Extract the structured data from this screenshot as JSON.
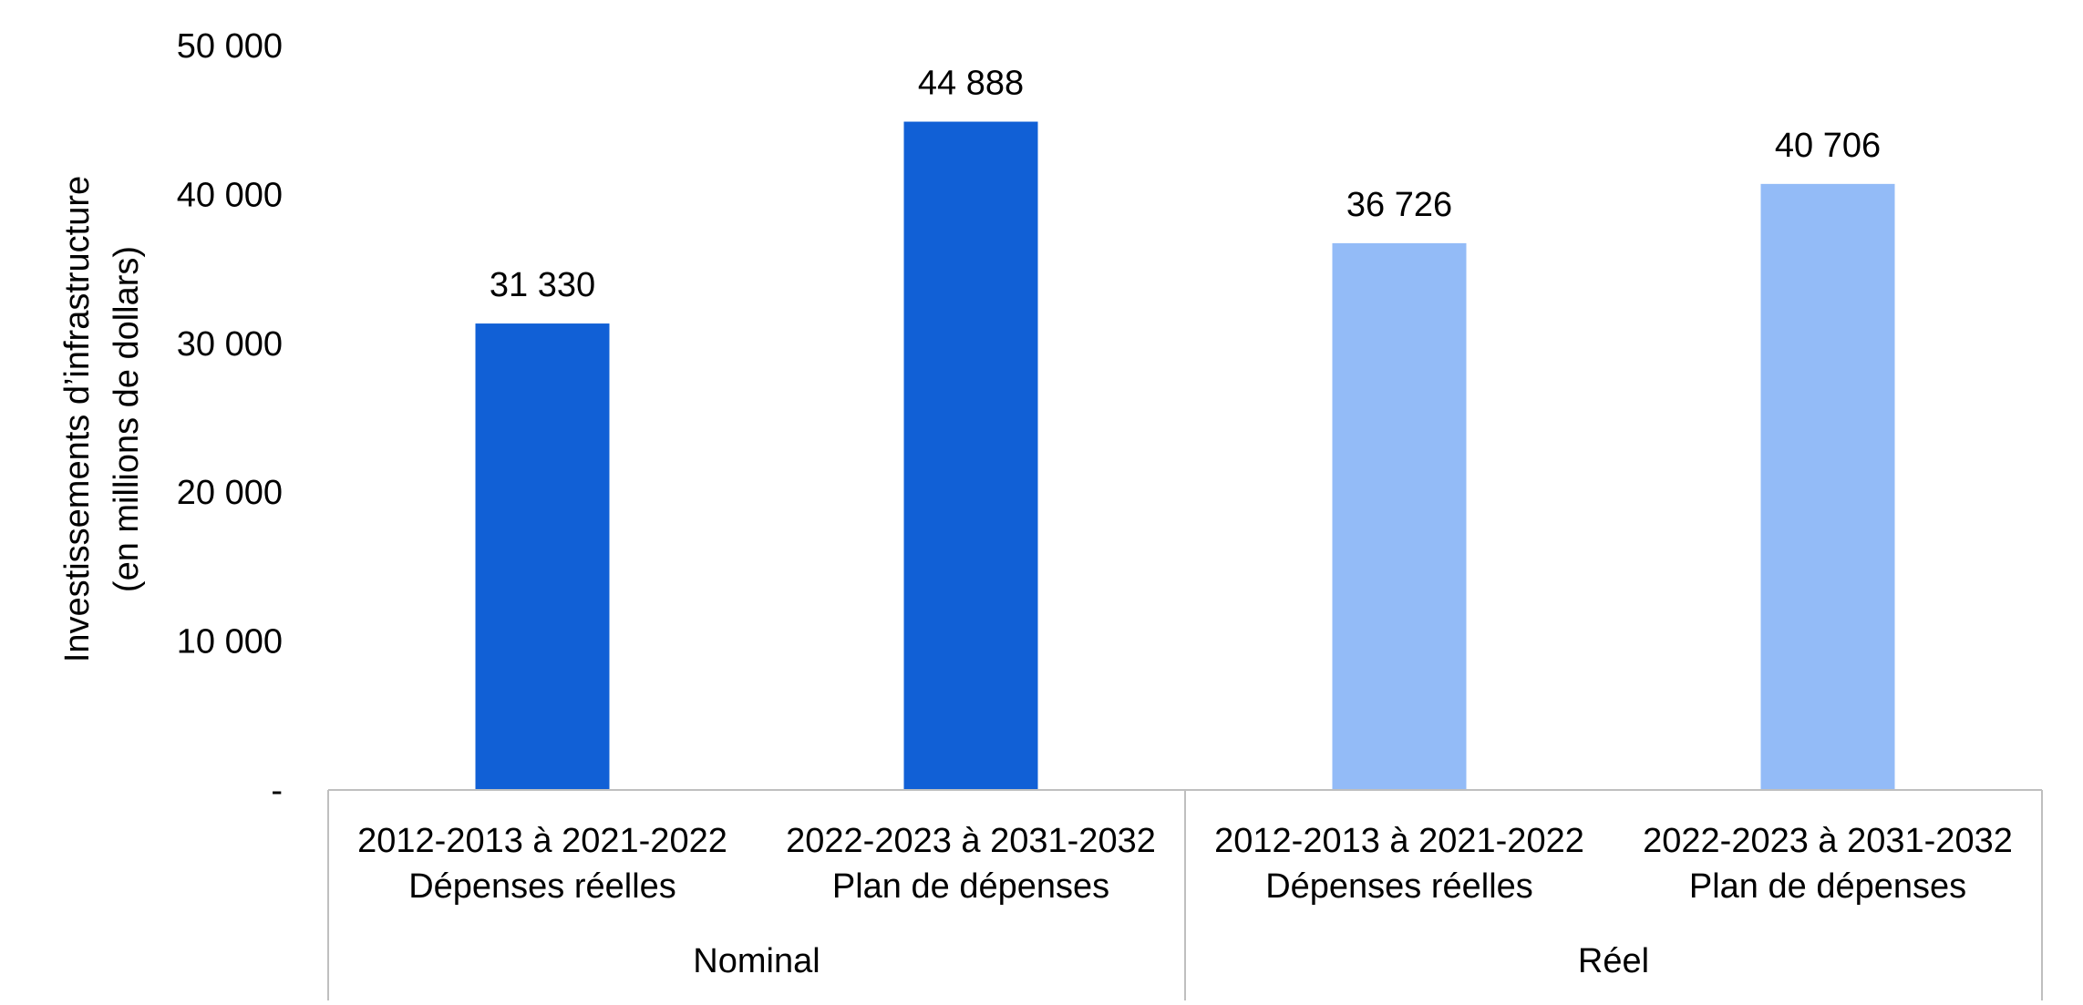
{
  "chart_data": {
    "type": "bar",
    "title": "",
    "ylabel": "Investissements d’infrastructure",
    "ylabel_line2": "(en millions de dollars)",
    "ylim": [
      0,
      50000
    ],
    "yticks": [
      {
        "value": 0,
        "label": "-"
      },
      {
        "value": 10000,
        "label": "10 000"
      },
      {
        "value": 20000,
        "label": "20 000"
      },
      {
        "value": 30000,
        "label": "30 000"
      },
      {
        "value": 40000,
        "label": "40 000"
      },
      {
        "value": 50000,
        "label": "50 000"
      }
    ],
    "grid": false,
    "legend": "none",
    "categories": [
      {
        "line1": "2012-2013 à 2021-2022",
        "line2": "Dépenses réelles",
        "group": "Nominal"
      },
      {
        "line1": "2022-2023 à 2031-2032",
        "line2": "Plan de dépenses",
        "group": "Nominal"
      },
      {
        "line1": "2012-2013 à 2021-2022",
        "line2": "Dépenses réelles",
        "group": "Réel"
      },
      {
        "line1": "2022-2023 à 2031-2032",
        "line2": "Plan de dépenses",
        "group": "Réel"
      }
    ],
    "values": [
      31330,
      44888,
      36726,
      40706
    ],
    "value_labels": [
      "31 330",
      "44 888",
      "36 726",
      "40 706"
    ],
    "groups": [
      "Nominal",
      "Réel"
    ],
    "colors": [
      "#1160d6",
      "#1160d6",
      "#93bbf7",
      "#93bbf7"
    ],
    "axis_line_color": "#bfbfbf"
  }
}
